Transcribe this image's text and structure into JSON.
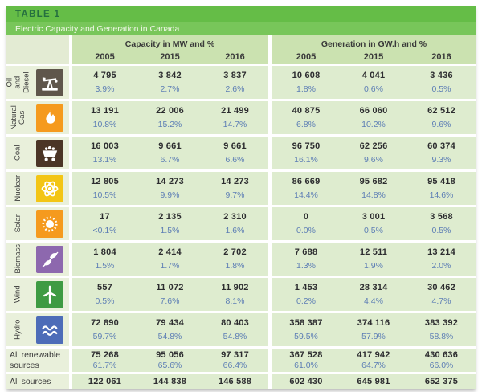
{
  "chart_data": {
    "type": "table",
    "title": "TABLE 1",
    "subtitle": "Electric Capacity and Generation in Canada",
    "column_groups": [
      "Capacity in MW and %",
      "Generation in GW.h and %"
    ],
    "years": [
      "2005",
      "2015",
      "2016"
    ],
    "rows": [
      {
        "label": "Oil and Diesel",
        "label_lines": [
          "Oil and",
          "Diesel"
        ],
        "icon": "oil-pump-icon",
        "icon_bg": "#5f564c",
        "capacity": [
          {
            "value": "4 795",
            "pct": "3.9%"
          },
          {
            "value": "3 842",
            "pct": "2.7%"
          },
          {
            "value": "3 837",
            "pct": "2.6%"
          }
        ],
        "generation": [
          {
            "value": "10 608",
            "pct": "1.8%"
          },
          {
            "value": "4 041",
            "pct": "0.6%"
          },
          {
            "value": "3 436",
            "pct": "0.5%"
          }
        ]
      },
      {
        "label": "Natural Gas",
        "label_lines": [
          "Natural",
          "Gas"
        ],
        "icon": "flame-icon",
        "icon_bg": "#f59a1e",
        "capacity": [
          {
            "value": "13 191",
            "pct": "10.8%"
          },
          {
            "value": "22 006",
            "pct": "15.2%"
          },
          {
            "value": "21 499",
            "pct": "14.7%"
          }
        ],
        "generation": [
          {
            "value": "40 875",
            "pct": "6.8%"
          },
          {
            "value": "66 060",
            "pct": "10.2%"
          },
          {
            "value": "62 512",
            "pct": "9.6%"
          }
        ]
      },
      {
        "label": "Coal",
        "label_lines": [
          "Coal"
        ],
        "icon": "coal-cart-icon",
        "icon_bg": "#4b3526",
        "capacity": [
          {
            "value": "16 003",
            "pct": "13.1%"
          },
          {
            "value": "9 661",
            "pct": "6.7%"
          },
          {
            "value": "9 661",
            "pct": "6.6%"
          }
        ],
        "generation": [
          {
            "value": "96 750",
            "pct": "16.1%"
          },
          {
            "value": "62 256",
            "pct": "9.6%"
          },
          {
            "value": "60 374",
            "pct": "9.3%"
          }
        ]
      },
      {
        "label": "Nuclear",
        "label_lines": [
          "Nuclear"
        ],
        "icon": "atom-icon",
        "icon_bg": "#f3c515",
        "capacity": [
          {
            "value": "12 805",
            "pct": "10.5%"
          },
          {
            "value": "14 273",
            "pct": "9.9%"
          },
          {
            "value": "14 273",
            "pct": "9.7%"
          }
        ],
        "generation": [
          {
            "value": "86 669",
            "pct": "14.4%"
          },
          {
            "value": "95 682",
            "pct": "14.8%"
          },
          {
            "value": "95 418",
            "pct": "14.6%"
          }
        ]
      },
      {
        "label": "Solar",
        "label_lines": [
          "Solar"
        ],
        "icon": "sun-icon",
        "icon_bg": "#f59a1e",
        "capacity": [
          {
            "value": "17",
            "pct": "<0.1%"
          },
          {
            "value": "2 135",
            "pct": "1.5%"
          },
          {
            "value": "2 310",
            "pct": "1.6%"
          }
        ],
        "generation": [
          {
            "value": "0",
            "pct": "0.0%"
          },
          {
            "value": "3 001",
            "pct": "0.5%"
          },
          {
            "value": "3 568",
            "pct": "0.5%"
          }
        ]
      },
      {
        "label": "Biomass",
        "label_lines": [
          "Biomass"
        ],
        "icon": "leaf-icon",
        "icon_bg": "#8d68ae",
        "capacity": [
          {
            "value": "1 804",
            "pct": "1.5%"
          },
          {
            "value": "2 414",
            "pct": "1.7%"
          },
          {
            "value": "2 702",
            "pct": "1.8%"
          }
        ],
        "generation": [
          {
            "value": "7 688",
            "pct": "1.3%"
          },
          {
            "value": "12 511",
            "pct": "1.9%"
          },
          {
            "value": "13 214",
            "pct": "2.0%"
          }
        ]
      },
      {
        "label": "Wind",
        "label_lines": [
          "Wind"
        ],
        "icon": "wind-turbine-icon",
        "icon_bg": "#3e9b43",
        "capacity": [
          {
            "value": "557",
            "pct": "0.5%"
          },
          {
            "value": "11 072",
            "pct": "7.6%"
          },
          {
            "value": "11 902",
            "pct": "8.1%"
          }
        ],
        "generation": [
          {
            "value": "1 453",
            "pct": "0.2%"
          },
          {
            "value": "28 314",
            "pct": "4.4%"
          },
          {
            "value": "30 462",
            "pct": "4.7%"
          }
        ]
      },
      {
        "label": "Hydro",
        "label_lines": [
          "Hydro"
        ],
        "icon": "waves-icon",
        "icon_bg": "#4d6cb8",
        "capacity": [
          {
            "value": "72 890",
            "pct": "59.7%"
          },
          {
            "value": "79 434",
            "pct": "54.8%"
          },
          {
            "value": "80 403",
            "pct": "54.8%"
          }
        ],
        "generation": [
          {
            "value": "358 387",
            "pct": "59.5%"
          },
          {
            "value": "374 116",
            "pct": "57.9%"
          },
          {
            "value": "383 392",
            "pct": "58.8%"
          }
        ]
      }
    ],
    "summary_rows": [
      {
        "label": "All renewable sources",
        "capacity": [
          {
            "value": "75 268",
            "pct": "61.7%"
          },
          {
            "value": "95 056",
            "pct": "65.6%"
          },
          {
            "value": "97 317",
            "pct": "66.4%"
          }
        ],
        "generation": [
          {
            "value": "367 528",
            "pct": "61.0%"
          },
          {
            "value": "417 942",
            "pct": "64.7%"
          },
          {
            "value": "430 636",
            "pct": "66.0%"
          }
        ]
      },
      {
        "label": "All sources",
        "capacity": [
          {
            "value": "122 061"
          },
          {
            "value": "144 838"
          },
          {
            "value": "146 588"
          }
        ],
        "generation": [
          {
            "value": "602 430"
          },
          {
            "value": "645 981"
          },
          {
            "value": "652 375"
          }
        ]
      }
    ]
  },
  "theme": {
    "band_green": "#65bd47",
    "band_green_light": "#78c65a",
    "header_green": "#cbe2b0",
    "cell_green": "#deeccf",
    "label_cell_green": "#e9f0db",
    "value_text": "#2d2d30",
    "percent_text": "#5d7eb5",
    "title_text": "#256f3f"
  }
}
